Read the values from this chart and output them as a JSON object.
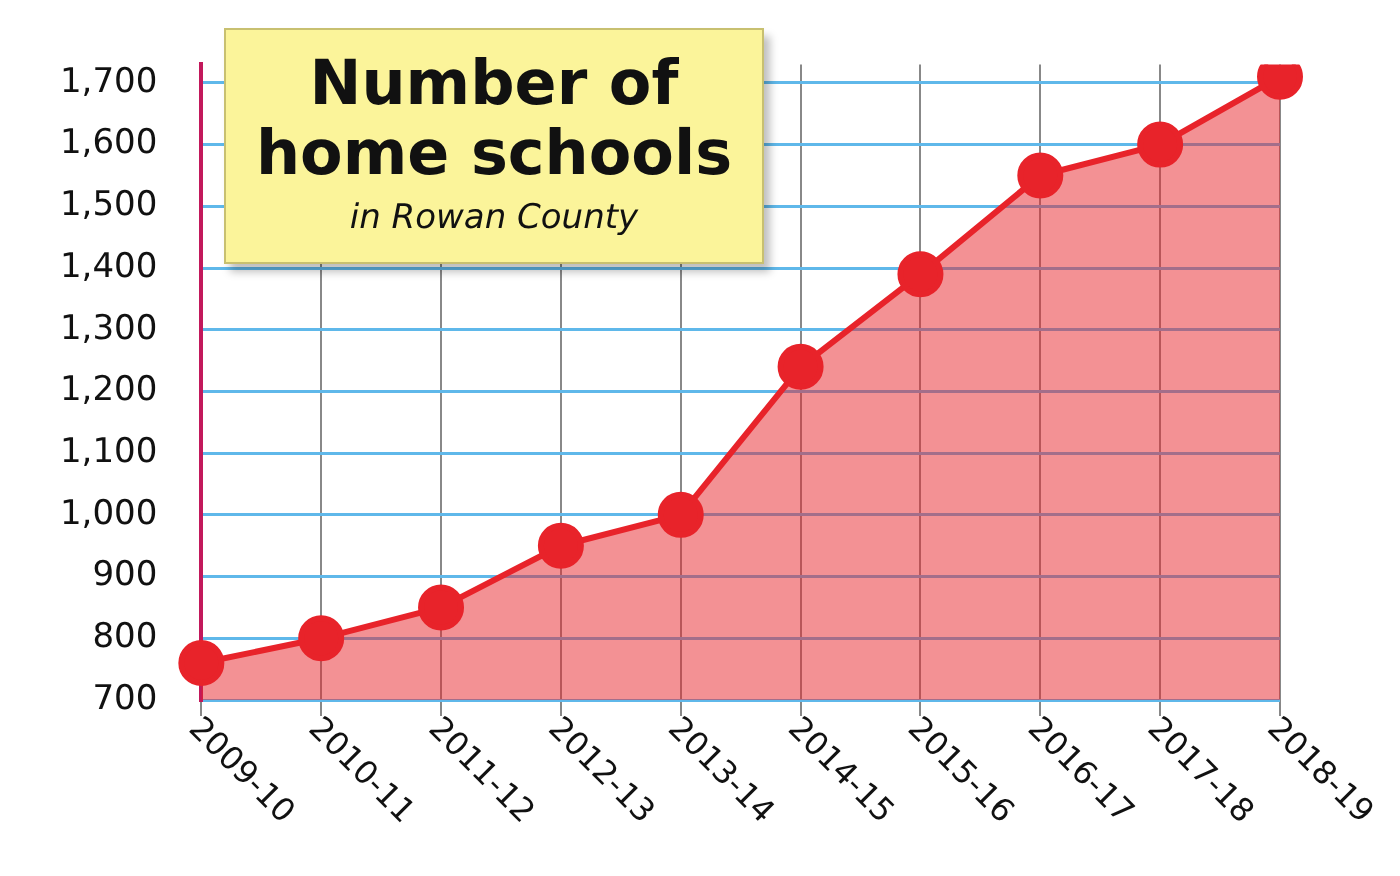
{
  "chart_data": {
    "type": "area",
    "title": "Number of home schools",
    "subtitle": "in Rowan County",
    "categories": [
      "2009-10",
      "2010-11",
      "2011-12",
      "2012-13",
      "2013-14",
      "2014-15",
      "2015-16",
      "2016-17",
      "2017-18",
      "2018-19"
    ],
    "series": [
      {
        "color": "#e8232a",
        "values": [
          760,
          800,
          850,
          950,
          1000,
          1240,
          1390,
          1550,
          1600,
          1710
        ]
      }
    ],
    "ylim": [
      700,
      1730
    ],
    "yticks": [
      {
        "value": 700,
        "label": "700"
      },
      {
        "value": 800,
        "label": "800"
      },
      {
        "value": 900,
        "label": "900"
      },
      {
        "value": 1000,
        "label": "1,000"
      },
      {
        "value": 1100,
        "label": "1,100"
      },
      {
        "value": 1200,
        "label": "1,200"
      },
      {
        "value": 1300,
        "label": "1,300"
      },
      {
        "value": 1400,
        "label": "1,400"
      },
      {
        "value": 1500,
        "label": "1,500"
      },
      {
        "value": 1600,
        "label": "1,600"
      },
      {
        "value": 1700,
        "label": "1,700"
      }
    ],
    "grid": true,
    "marker": "circle",
    "legend": false
  }
}
